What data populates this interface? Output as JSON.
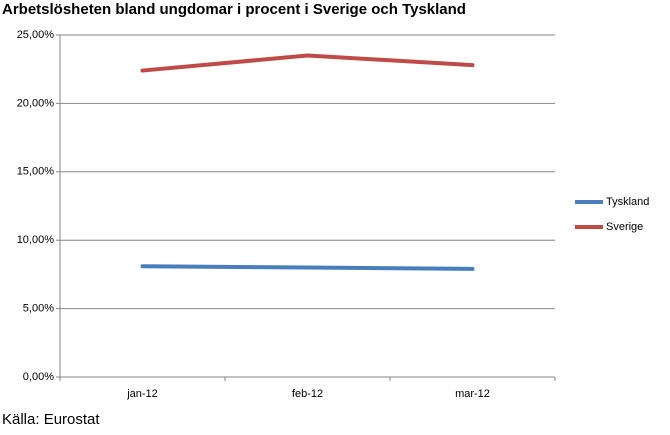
{
  "chart_data": {
    "type": "line",
    "title": "Arbetslösheten bland ungdomar i procent i Sverige och Tyskland",
    "source": "Källa: Eurostat",
    "categories": [
      "jan-12",
      "feb-12",
      "mar-12"
    ],
    "series": [
      {
        "name": "Tyskland",
        "color": "#4a7ebb",
        "values": [
          8.1,
          8.0,
          7.9
        ]
      },
      {
        "name": "Sverige",
        "color": "#be4b48",
        "values": [
          22.4,
          23.5,
          22.8
        ]
      }
    ],
    "ylim": [
      0,
      25
    ],
    "yticks": [
      {
        "value": 0,
        "label": "0,00%"
      },
      {
        "value": 5,
        "label": "5,00%"
      },
      {
        "value": 10,
        "label": "10,00%"
      },
      {
        "value": 15,
        "label": "15,00%"
      },
      {
        "value": 20,
        "label": "20,00%"
      },
      {
        "value": 25,
        "label": "25,00%"
      }
    ],
    "grid": true,
    "legend": "right"
  }
}
